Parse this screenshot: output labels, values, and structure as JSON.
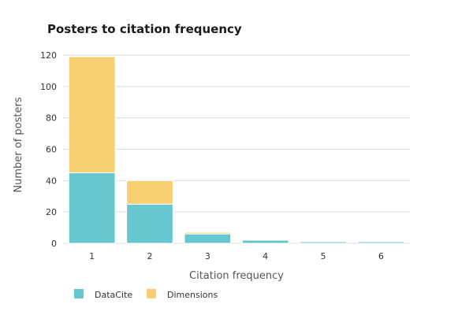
{
  "chart_data": {
    "type": "bar",
    "stacked": true,
    "title": "Posters to citation frequency",
    "xlabel": "Citation frequency",
    "ylabel": "Number of posters",
    "categories": [
      "1",
      "2",
      "3",
      "4",
      "5",
      "6"
    ],
    "series": [
      {
        "name": "DataCite",
        "color": "#67c7cf",
        "values": [
          45,
          25,
          6,
          2,
          1,
          1
        ]
      },
      {
        "name": "Dimensions",
        "color": "#f6cf72",
        "values": [
          74,
          15,
          1,
          0,
          0,
          0
        ]
      }
    ],
    "ylim": [
      0,
      120
    ],
    "yticks": [
      0,
      20,
      40,
      60,
      80,
      100,
      120
    ],
    "grid": true,
    "legend_position": "bottom-left"
  }
}
